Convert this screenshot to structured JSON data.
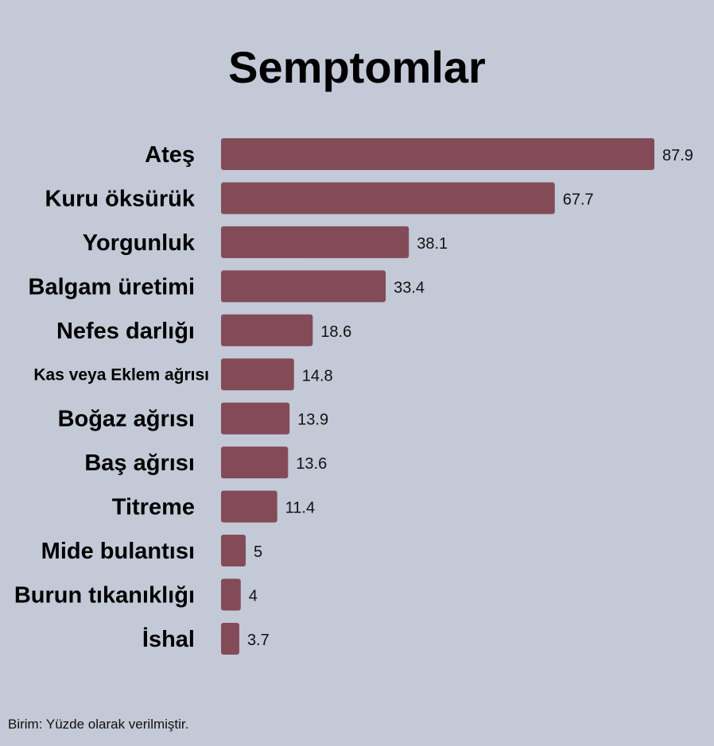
{
  "chart_data": {
    "type": "bar",
    "orientation": "horizontal",
    "title": "Semptomlar",
    "categories": [
      "Ateş",
      "Kuru öksürük",
      "Yorgunluk",
      "Balgam üretimi",
      "Nefes darlığı",
      "Kas veya Eklem ağrısı",
      "Boğaz ağrısı",
      "Baş ağrısı",
      "Titreme",
      "Mide bulantısı",
      "Burun tıkanıklığı",
      "İshal"
    ],
    "values": [
      87.9,
      67.7,
      38.1,
      33.4,
      18.6,
      14.8,
      13.9,
      13.6,
      11.4,
      5,
      4,
      3.7
    ],
    "value_labels": [
      "87.9",
      "67.7",
      "38.1",
      "33.4",
      "18.6",
      "14.8",
      "13.9",
      "13.6",
      "11.4",
      "5",
      "4",
      "3.7"
    ],
    "xlim": [
      0,
      87.9
    ],
    "grid": false,
    "bar_color": "#834b58",
    "background": "#c3c9d6",
    "footnote": "Birim: Yüzde olarak verilmiştir."
  }
}
